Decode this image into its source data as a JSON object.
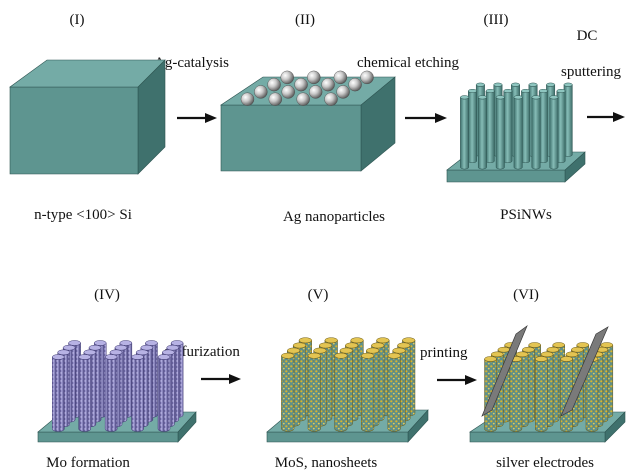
{
  "steps": [
    {
      "numeral": "(I)",
      "caption": "n-type <100> Si"
    },
    {
      "numeral": "(II)",
      "caption": "Ag nanoparticles"
    },
    {
      "numeral": "(III)",
      "caption": "PSiNWs"
    },
    {
      "numeral": "(IV)",
      "caption": "Mo formation"
    },
    {
      "numeral": "(V)",
      "caption": "MoS, nanosheets"
    },
    {
      "numeral": "(VI)",
      "caption": "silver electrodes"
    }
  ],
  "transitions": {
    "ag_catalysis": "Ag-catalysis",
    "chemical_etching": "chemical etching",
    "dc": "DC",
    "sputtering": "sputtering",
    "sulfurization": "sulfurization",
    "printing": "printing"
  },
  "colors": {
    "substrate_top": "#74ABA6",
    "substrate_front": "#5E9590",
    "substrate_side": "#3F716D",
    "ag_particle": "#BFBFBF",
    "mo_coating": "#7E79B4",
    "mos2_coating": "#C9A227",
    "electrode": "#7A7A7A"
  }
}
